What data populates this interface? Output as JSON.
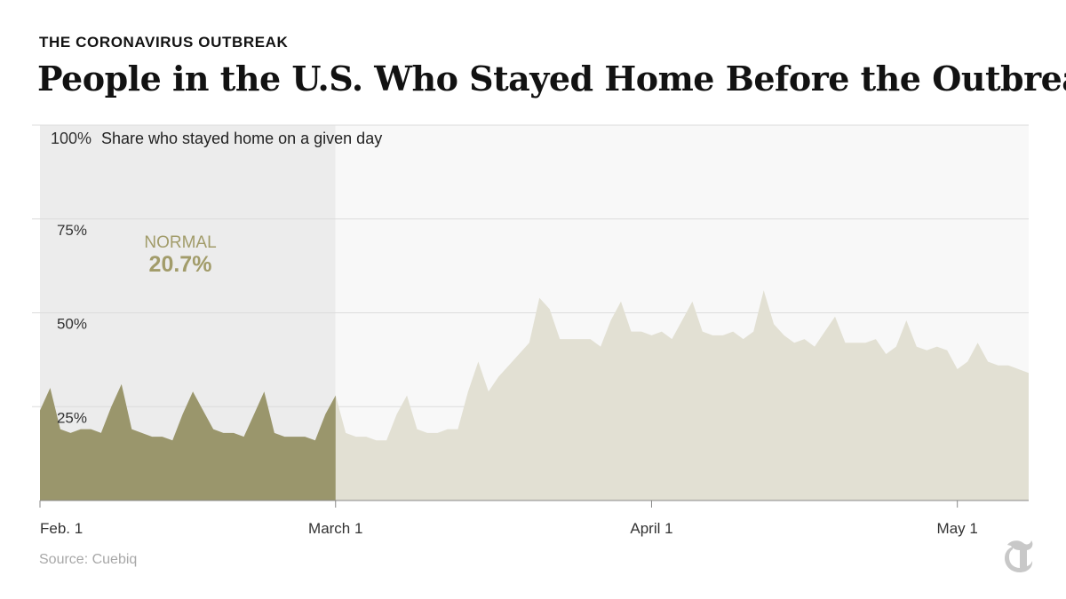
{
  "header": {
    "kicker": "THE CORONAVIRUS OUTBREAK",
    "title": "People in the U.S. Who Stayed Home Before the Outbreak"
  },
  "source": "Source: Cuebiq",
  "logo_icon": "nyt-t-logo-icon",
  "colors": {
    "highlight_fill": "#9a966c",
    "rest_fill": "#e2e0d3",
    "highlight_band": "#ececec",
    "rest_band": "#f8f8f8",
    "normal_text": "#a29c6a",
    "grid": "#dcdcdc",
    "axis": "#888888"
  },
  "chart_data": {
    "type": "area",
    "ylabel": "Share who stayed home on a given day",
    "ylim": [
      0,
      100
    ],
    "yticks": [
      25,
      50,
      75,
      100
    ],
    "ytick_labels": [
      "25%",
      "50%",
      "75%",
      "100%"
    ],
    "xlim": [
      "2020-02-01",
      "2020-05-08"
    ],
    "xticks": [
      "2020-02-01",
      "2020-03-01",
      "2020-04-01",
      "2020-05-01"
    ],
    "xtick_labels": [
      "Feb. 1",
      "March 1",
      "April 1",
      "May 1"
    ],
    "highlight_range": [
      "2020-02-01",
      "2020-02-29"
    ],
    "annotation": {
      "label": "NORMAL",
      "value": "20.7%"
    },
    "start_date": "2020-02-01",
    "values": [
      24,
      30,
      19,
      18,
      19,
      19,
      18,
      25,
      31,
      19,
      18,
      17,
      17,
      16,
      23,
      29,
      24,
      19,
      18,
      18,
      17,
      23,
      29,
      18,
      17,
      17,
      17,
      16,
      23,
      28,
      18,
      17,
      17,
      16,
      16,
      23,
      28,
      19,
      18,
      18,
      19,
      19,
      29,
      37,
      29,
      33,
      36,
      39,
      42,
      54,
      51,
      43,
      43,
      43,
      43,
      41,
      48,
      53,
      45,
      45,
      44,
      45,
      43,
      48,
      53,
      45,
      44,
      44,
      45,
      43,
      45,
      56,
      47,
      44,
      42,
      43,
      41,
      45,
      49,
      42,
      42,
      42,
      43,
      39,
      41,
      48,
      41,
      40,
      41,
      40,
      35,
      37,
      42,
      37,
      36,
      36,
      35,
      34
    ]
  }
}
